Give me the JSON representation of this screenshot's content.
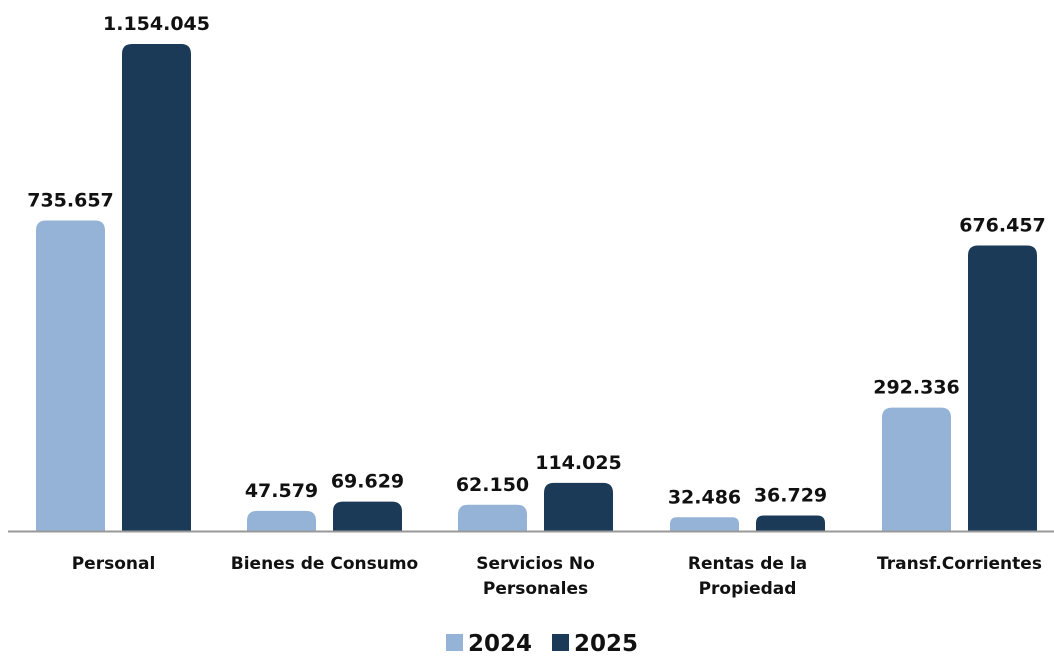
{
  "chart_data": {
    "type": "bar",
    "title": "",
    "xlabel": "",
    "ylabel": "",
    "ylim": [
      0,
      1154045
    ],
    "grid": false,
    "legend_position": "bottom-center",
    "categories": [
      [
        "Personal"
      ],
      [
        "Bienes de Consumo"
      ],
      [
        "Servicios No",
        "Personales"
      ],
      [
        "Rentas de la",
        "Propiedad"
      ],
      [
        "Transf.Corrientes"
      ]
    ],
    "series": [
      {
        "name": "2024",
        "color": "#95b3d7",
        "values": [
          735657,
          47579,
          62150,
          32486,
          292336
        ],
        "labels": [
          "735.657",
          "47.579",
          "62.150",
          "32.486",
          "292.336"
        ]
      },
      {
        "name": "2025",
        "color": "#1b3a57",
        "values": [
          1154045,
          69629,
          114025,
          36729,
          676457
        ],
        "labels": [
          "1.154.045",
          "69.629",
          "114.025",
          "36.729",
          "676.457"
        ]
      }
    ],
    "axis_color": "#999999"
  }
}
